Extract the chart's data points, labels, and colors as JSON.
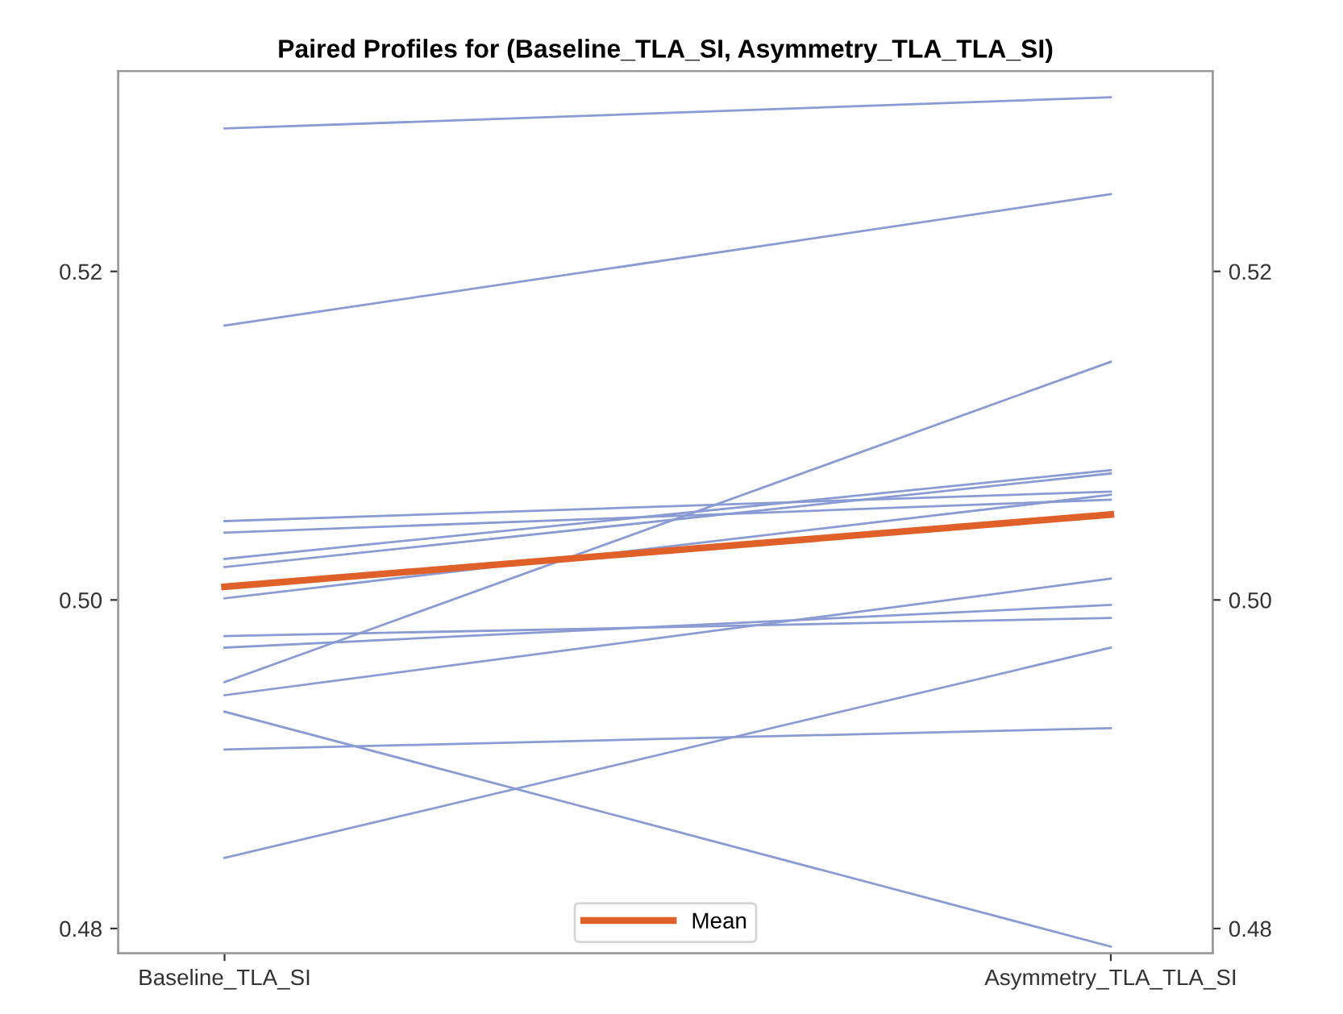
{
  "chart_data": {
    "type": "line",
    "title": "Paired Profiles for (Baseline_TLA_SI, Asymmetry_TLA_TLA_SI)",
    "categories": [
      "Baseline_TLA_SI",
      "Asymmetry_TLA_TLA_SI"
    ],
    "series": [
      {
        "color": "#8a9bd4",
        "values": [
          0.5287,
          0.5306
        ]
      },
      {
        "color": "#8a9bd4",
        "values": [
          0.5167,
          0.5247
        ]
      },
      {
        "color": "#8a9bd4",
        "values": [
          0.5048,
          0.5066
        ]
      },
      {
        "color": "#8a9bd4",
        "values": [
          0.5041,
          0.5061
        ]
      },
      {
        "color": "#8a9bd4",
        "values": [
          0.5025,
          0.5079
        ]
      },
      {
        "color": "#8a9bd4",
        "values": [
          0.502,
          0.5077
        ]
      },
      {
        "color": "#8a9bd4",
        "values": [
          0.5001,
          0.5064
        ]
      },
      {
        "color": "#8a9bd4",
        "values": [
          0.4978,
          0.4989
        ]
      },
      {
        "color": "#8a9bd4",
        "values": [
          0.4971,
          0.4997
        ]
      },
      {
        "color": "#8a9bd4",
        "values": [
          0.495,
          0.5145
        ]
      },
      {
        "color": "#8a9bd4",
        "values": [
          0.4942,
          0.5013
        ]
      },
      {
        "color": "#8a9bd4",
        "values": [
          0.4932,
          0.4789
        ]
      },
      {
        "color": "#8a9bd4",
        "values": [
          0.4909,
          0.4922
        ]
      },
      {
        "color": "#8a9bd4",
        "values": [
          0.4843,
          0.4971
        ]
      },
      {
        "name": "Mean",
        "color": "#e0602a",
        "values": [
          0.5008,
          0.5052
        ]
      }
    ],
    "ylim": [
      0.4785,
      0.5322
    ],
    "yticks": [
      0.48,
      {
        "value": 0.5,
        "label": "0.50"
      },
      0.52
    ],
    "y2lim": [
      0.4785,
      0.5322
    ],
    "y2ticks": [
      0.48,
      {
        "value": 0.5,
        "label": "0.50"
      },
      0.52
    ],
    "legend": "bottom",
    "grid": false,
    "marker": "none",
    "line_style": "solid"
  }
}
